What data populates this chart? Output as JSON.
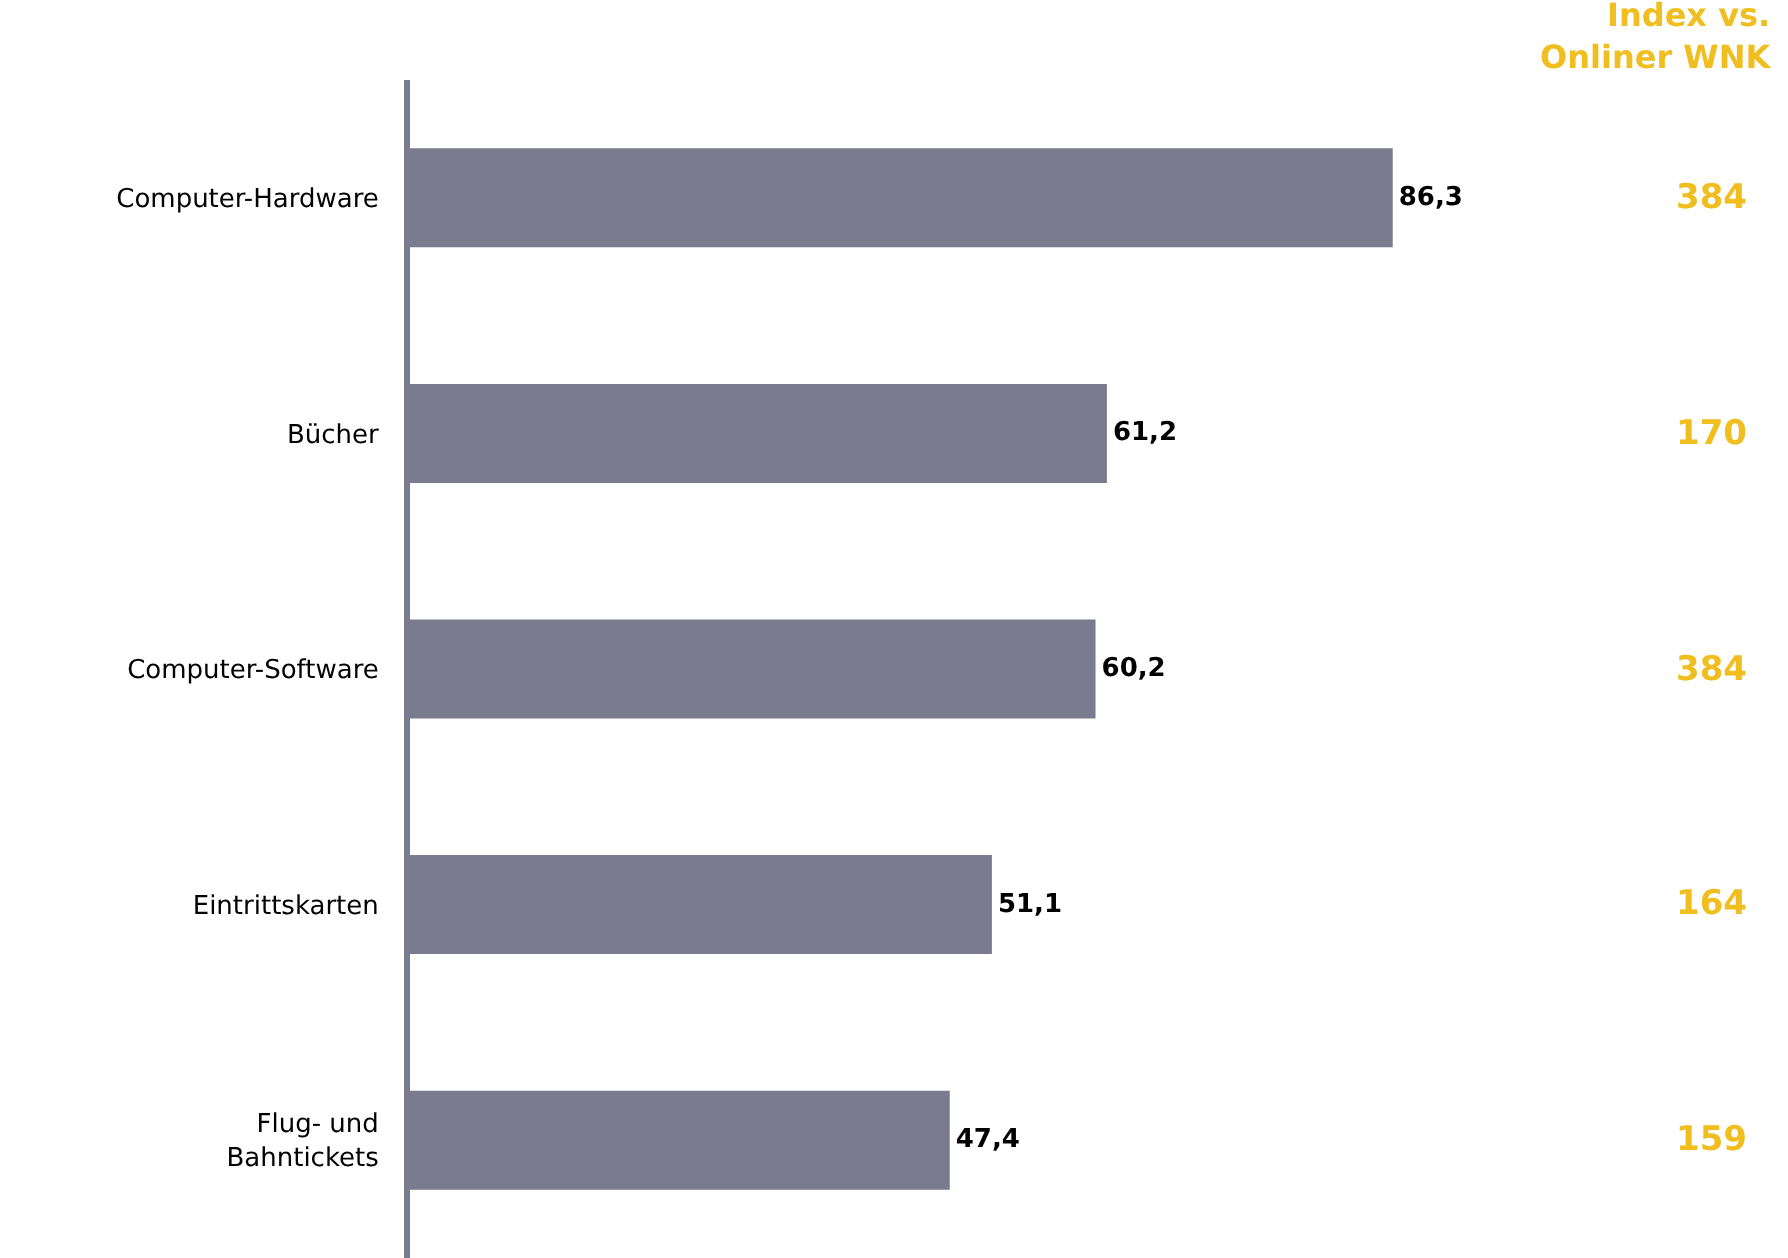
{
  "chart_data": {
    "type": "bar",
    "orientation": "horizontal",
    "categories": [
      "Computer-Hardware",
      "Bücher",
      "Computer-Software",
      "Eintrittskarten",
      "Flug- und\nBahntickets"
    ],
    "values": [
      86.3,
      61.2,
      60.2,
      51.1,
      47.4
    ],
    "value_labels": [
      "86,3",
      "61,2",
      "60,2",
      "51,1",
      "47,4"
    ],
    "color": "#7b7b90",
    "grid": false,
    "legend": false,
    "annotations": [
      "Index vs.\nOnliner WNK",
      "384",
      "170",
      "384",
      "164",
      "159"
    ]
  }
}
